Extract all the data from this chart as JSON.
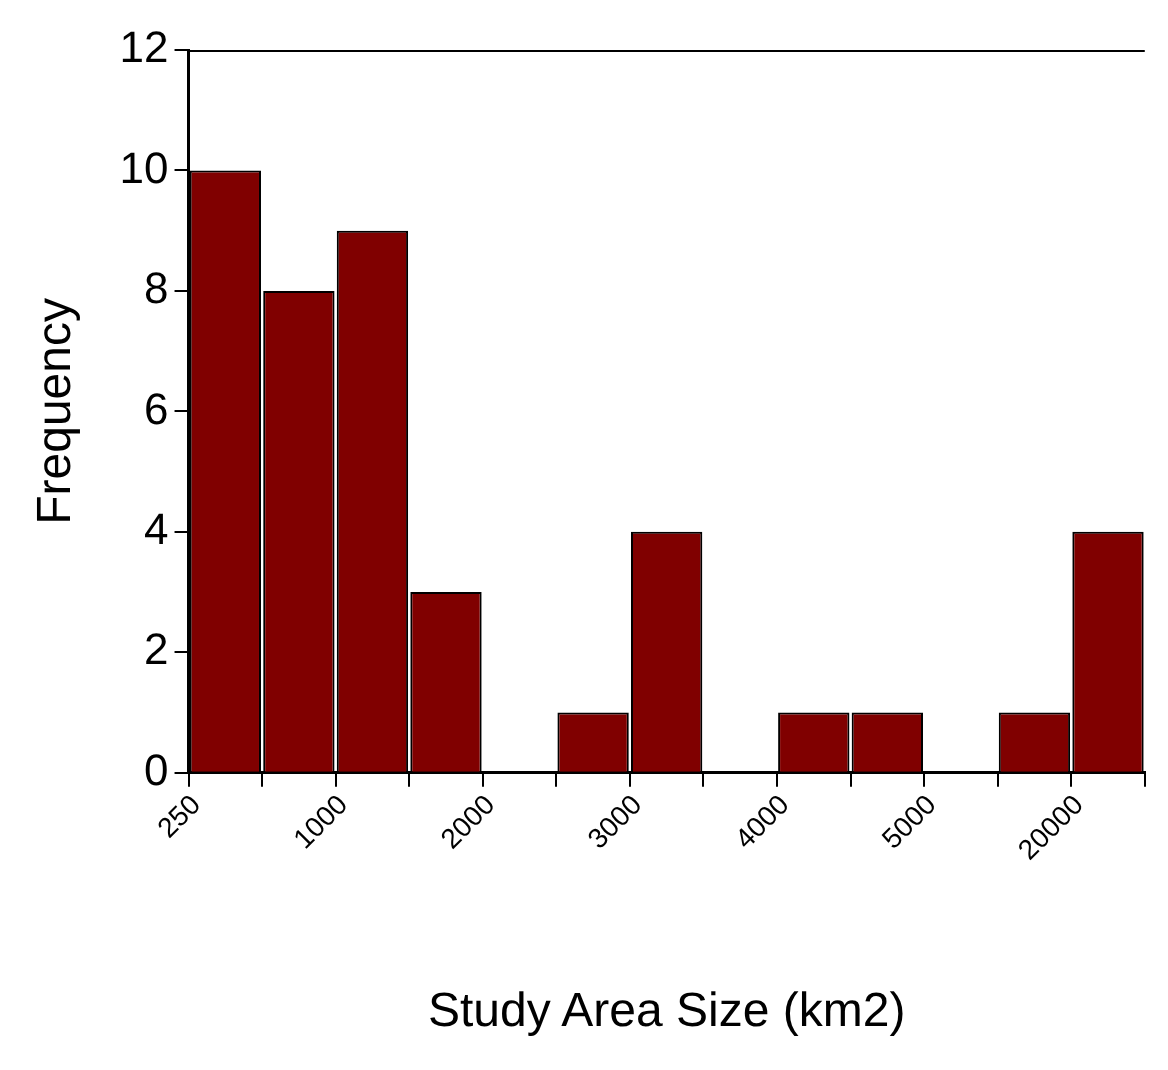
{
  "chart_data": {
    "type": "bar",
    "xlabel": "Study Area Size (km2)",
    "ylabel": "Frequency",
    "categories": [
      null,
      null,
      null,
      null,
      null,
      null,
      null,
      null,
      null,
      null,
      null,
      null,
      null
    ],
    "values": [
      10,
      8,
      9,
      3,
      0,
      1,
      4,
      0,
      1,
      1,
      0,
      1,
      4
    ],
    "color": "#800000",
    "annotations": [
      "250",
      "1000",
      "2000",
      "3000",
      "4000",
      "5000",
      "20000"
    ],
    "ylim": [
      0,
      12
    ],
    "yticks": [
      0,
      2,
      4,
      6,
      8,
      10,
      12
    ],
    "grid": false,
    "legend": false
  }
}
